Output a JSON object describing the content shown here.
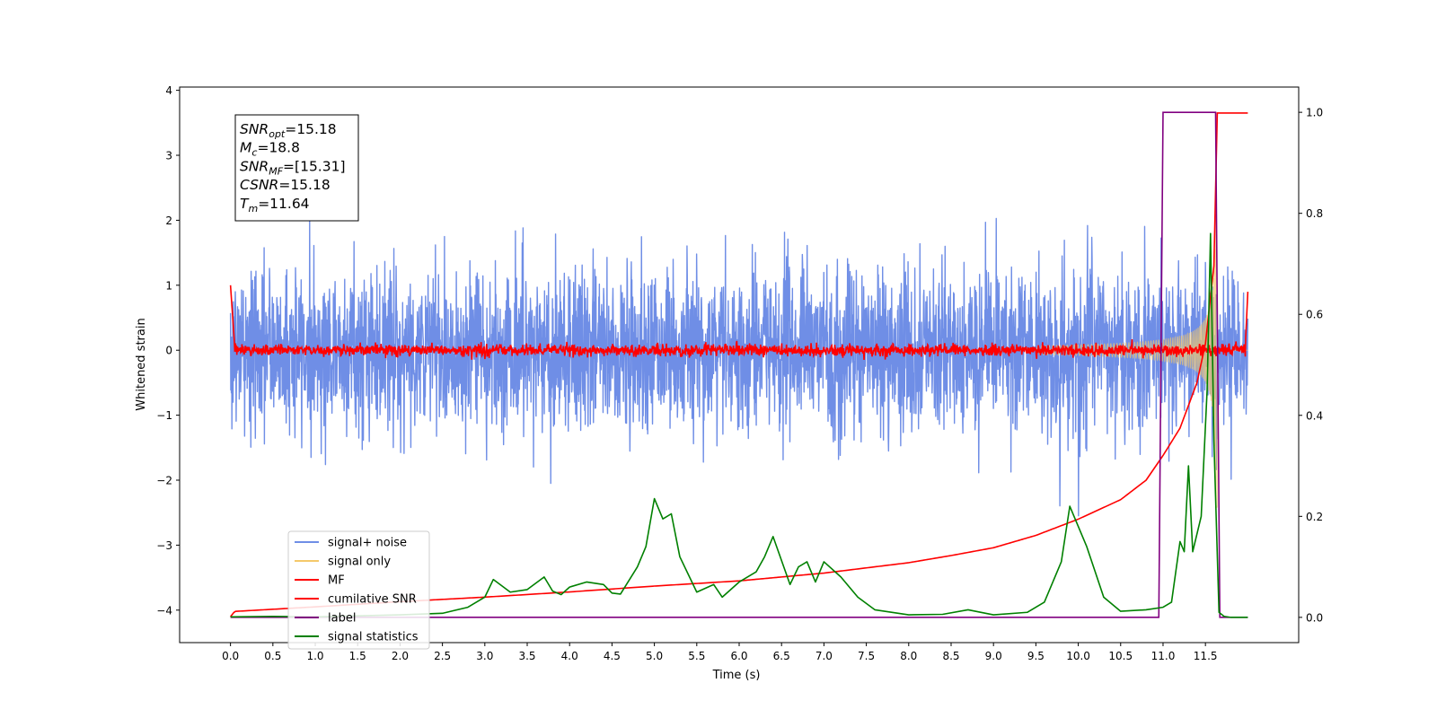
{
  "chart_data": {
    "type": "line",
    "xlabel": "Time (s)",
    "ylabel": "Whitened strain",
    "xlim": [
      -0.6,
      12.6
    ],
    "ylim": [
      -4.5,
      4.05
    ],
    "y2lim": [
      -0.05,
      1.05
    ],
    "x_ticks": [
      0.0,
      0.5,
      1.0,
      1.5,
      2.0,
      2.5,
      3.0,
      3.5,
      4.0,
      4.5,
      5.0,
      5.5,
      6.0,
      6.5,
      7.0,
      7.5,
      8.0,
      8.5,
      9.0,
      9.5,
      10.0,
      10.5,
      11.0,
      11.5
    ],
    "x_tick_labels": [
      "0.0",
      "0.5",
      "1.0",
      "1.5",
      "2.0",
      "2.5",
      "3.0",
      "3.5",
      "4.0",
      "4.5",
      "5.0",
      "5.5",
      "6.0",
      "6.5",
      "7.0",
      "7.5",
      "8.0",
      "8.5",
      "9.0",
      "9.5",
      "10.0",
      "10.5",
      "11.0",
      "11.5"
    ],
    "y_ticks": [
      4,
      3,
      2,
      1,
      0,
      -1,
      -2,
      -3,
      -4
    ],
    "y_tick_labels": [
      "4",
      "3",
      "2",
      "1",
      "0",
      "−1",
      "−2",
      "−3",
      "−4"
    ],
    "y2_ticks": [
      1.0,
      0.8,
      0.6,
      0.4,
      0.2,
      0.0
    ],
    "y2_tick_labels": [
      "1.0",
      "0.8",
      "0.6",
      "0.4",
      "0.2",
      "0.0"
    ],
    "legend_placement": "lower-left",
    "grid": false,
    "legend": [
      {
        "label": "signal+ noise",
        "color": "#6f8ee6"
      },
      {
        "label": "signal only",
        "color": "#f5c96a"
      },
      {
        "label": "MF",
        "color": "#ff0000"
      },
      {
        "label": "cumilative SNR",
        "color": "#ff0000"
      },
      {
        "label": "label",
        "color": "#800080"
      },
      {
        "label": "signal statistics",
        "color": "#008000"
      }
    ],
    "annotations": [
      {
        "base": "SNR",
        "sub": "opt",
        "rest": "=15.18"
      },
      {
        "base": "M",
        "sub": "c",
        "rest": "=18.8"
      },
      {
        "base": "SNR",
        "sub": "MF",
        "rest": "=[15.31]"
      },
      {
        "base": "CSNR",
        "sub": "",
        "rest": "=15.18"
      },
      {
        "base": "T",
        "sub": "m",
        "rest": "=11.64"
      }
    ],
    "noise_std": 0.62,
    "t_end": 12.0,
    "t_merger": 11.64,
    "label_series": {
      "x": [
        0.0,
        10.95,
        11.0,
        11.62,
        11.67,
        12.0
      ],
      "y": [
        0.0,
        0.0,
        1.0,
        1.0,
        0.0,
        0.0
      ]
    },
    "cumulative_snr": {
      "x": [
        0.0,
        0.05,
        1.0,
        2.0,
        3.0,
        4.0,
        5.0,
        6.0,
        7.0,
        7.5,
        8.0,
        8.5,
        9.0,
        9.5,
        10.0,
        10.5,
        10.8,
        11.0,
        11.2,
        11.4,
        11.5,
        11.6,
        11.64,
        11.7,
        12.0
      ],
      "y": [
        -4.1,
        -4.02,
        -3.95,
        -3.87,
        -3.8,
        -3.72,
        -3.63,
        -3.55,
        -3.43,
        -3.35,
        -3.27,
        -3.16,
        -3.04,
        -2.85,
        -2.6,
        -2.3,
        -2.0,
        -1.62,
        -1.2,
        -0.5,
        0.1,
        1.3,
        3.65,
        3.65,
        3.65
      ]
    },
    "signal_statistics": {
      "x": [
        0.0,
        0.5,
        1.0,
        1.5,
        2.0,
        2.5,
        2.8,
        3.0,
        3.1,
        3.3,
        3.5,
        3.7,
        3.8,
        3.9,
        4.0,
        4.2,
        4.4,
        4.5,
        4.6,
        4.8,
        4.9,
        5.0,
        5.1,
        5.2,
        5.3,
        5.5,
        5.7,
        5.8,
        6.0,
        6.2,
        6.3,
        6.4,
        6.6,
        6.7,
        6.8,
        6.9,
        7.0,
        7.2,
        7.4,
        7.6,
        8.0,
        8.4,
        8.7,
        9.0,
        9.4,
        9.6,
        9.8,
        9.9,
        10.1,
        10.3,
        10.5,
        10.8,
        11.0,
        11.1,
        11.2,
        11.25,
        11.3,
        11.35,
        11.45,
        11.52,
        11.56,
        11.6,
        11.66,
        11.72,
        11.8,
        12.0
      ],
      "y": [
        0.001,
        0.002,
        0.001,
        0.003,
        0.005,
        0.008,
        0.02,
        0.04,
        0.075,
        0.05,
        0.055,
        0.08,
        0.052,
        0.045,
        0.06,
        0.07,
        0.065,
        0.048,
        0.046,
        0.1,
        0.14,
        0.235,
        0.195,
        0.205,
        0.12,
        0.05,
        0.065,
        0.04,
        0.07,
        0.09,
        0.12,
        0.16,
        0.065,
        0.1,
        0.11,
        0.07,
        0.11,
        0.08,
        0.04,
        0.015,
        0.005,
        0.006,
        0.015,
        0.005,
        0.01,
        0.03,
        0.11,
        0.22,
        0.14,
        0.04,
        0.012,
        0.015,
        0.02,
        0.03,
        0.15,
        0.13,
        0.3,
        0.13,
        0.2,
        0.45,
        0.76,
        0.35,
        0.01,
        0.002,
        0.0,
        0.0
      ]
    }
  }
}
